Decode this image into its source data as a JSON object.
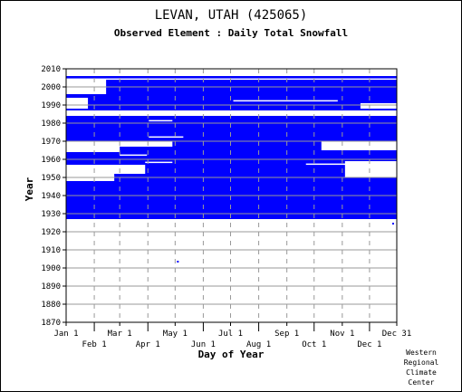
{
  "title": "LEVAN, UTAH   (425065)",
  "subtitle": "Observed Element : Daily Total Snowfall",
  "credit": [
    "Western",
    "Regional",
    "Climate",
    "Center"
  ],
  "colors": {
    "data": "#0000ff",
    "frame": "#000000",
    "grid": "#999999"
  },
  "chart_data": {
    "type": "heatmap",
    "title": "LEVAN, UTAH   (425065)",
    "subtitle": "Observed Element : Daily Total Snowfall",
    "xlabel": "Day of Year",
    "ylabel": "Year",
    "xlim": [
      1,
      365
    ],
    "ylim": [
      1870,
      2010
    ],
    "grid": true,
    "x_ticks": [
      {
        "label": "Jan 1",
        "day": 1,
        "row": 0
      },
      {
        "label": "Feb 1",
        "day": 32,
        "row": 1
      },
      {
        "label": "Mar 1",
        "day": 60,
        "row": 0
      },
      {
        "label": "Apr 1",
        "day": 91,
        "row": 1
      },
      {
        "label": "May 1",
        "day": 121,
        "row": 0
      },
      {
        "label": "Jun 1",
        "day": 152,
        "row": 1
      },
      {
        "label": "Jul 1",
        "day": 182,
        "row": 0
      },
      {
        "label": "Aug 1",
        "day": 213,
        "row": 1
      },
      {
        "label": "Sep 1",
        "day": 244,
        "row": 0
      },
      {
        "label": "Oct 1",
        "day": 274,
        "row": 1
      },
      {
        "label": "Nov 1",
        "day": 305,
        "row": 0
      },
      {
        "label": "Dec 1",
        "day": 335,
        "row": 1
      },
      {
        "label": "Dec 31",
        "day": 365,
        "row": 0
      }
    ],
    "y_ticks": [
      1870,
      1880,
      1890,
      1900,
      1910,
      1920,
      1930,
      1940,
      1950,
      1960,
      1970,
      1980,
      1990,
      2000,
      2010
    ],
    "coverage": {
      "start_year": 1927,
      "end_year": 2005,
      "observed_color": "#0000ff",
      "missing_color": "#ffffff",
      "missing_blocks": [
        {
          "years": [
            1984,
            1986
          ],
          "days": [
            1,
            365
          ]
        },
        {
          "years": [
            1964,
            1969
          ],
          "days": [
            1,
            60
          ]
        },
        {
          "years": [
            1967,
            1969
          ],
          "days": [
            60,
            118
          ]
        },
        {
          "years": [
            1952,
            1956
          ],
          "days": [
            1,
            88
          ]
        },
        {
          "years": [
            1948,
            1951
          ],
          "days": [
            1,
            54
          ]
        },
        {
          "years": [
            1996,
            2003
          ],
          "days": [
            1,
            45
          ]
        },
        {
          "years": [
            1965,
            1969
          ],
          "days": [
            282,
            365
          ]
        },
        {
          "years": [
            1950,
            1958
          ],
          "days": [
            308,
            365
          ]
        },
        {
          "years": [
            1988,
            1993
          ],
          "days": [
            1,
            25
          ]
        },
        {
          "years": [
            1988,
            1990
          ],
          "days": [
            325,
            365
          ]
        }
      ],
      "missing_lines": [
        {
          "year": 2004,
          "days": [
            1,
            365
          ]
        },
        {
          "year": 1992,
          "days": [
            185,
            300
          ]
        },
        {
          "year": 1972,
          "days": [
            92,
            130
          ]
        },
        {
          "year": 1962,
          "days": [
            60,
            90
          ]
        },
        {
          "year": 1958,
          "days": [
            88,
            118
          ]
        },
        {
          "year": 1981,
          "days": [
            92,
            118
          ]
        },
        {
          "year": 1957,
          "days": [
            265,
            330
          ]
        }
      ],
      "dots": [
        [
          123,
          1903
        ],
        [
          342,
          1937
        ],
        [
          360,
          1924
        ]
      ]
    }
  }
}
